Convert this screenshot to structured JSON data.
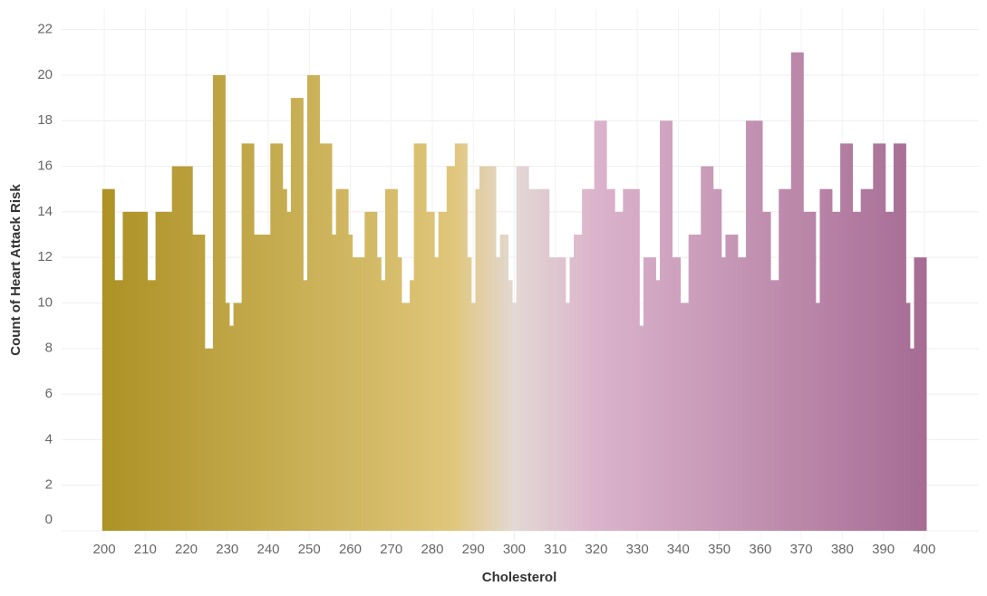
{
  "chart_data": {
    "type": "histogram",
    "x_label": "Cholesterol",
    "y_label": "Count of Heart Attack Risk",
    "bins": [
      199.5,
      200.5,
      201.5,
      202.5,
      203.5,
      204.5,
      205.5,
      206.5,
      207.5,
      208.5,
      209.5,
      210.5,
      211.5,
      212.5,
      213.5,
      214.5,
      215.5,
      216.5,
      217.5,
      218.5,
      219.5,
      220.5,
      221.5,
      222.5,
      223.5,
      224.5,
      225.5,
      226.5,
      227.5,
      228.5,
      229.5,
      230.5,
      231.5,
      232.5,
      233.5,
      234.5,
      235.5,
      236.5,
      237.5,
      238.5,
      239.5,
      240.5,
      241.5,
      242.5,
      243.5,
      244.5,
      245.5,
      246.5,
      247.5,
      248.5,
      249.5,
      250.5,
      251.5,
      252.5,
      253.5,
      254.5,
      255.5,
      256.5,
      257.5,
      258.5,
      259.5,
      260.5,
      261.5,
      262.5,
      263.5,
      264.5,
      265.5,
      266.5,
      267.5,
      268.5,
      269.5,
      270.5,
      271.5,
      272.5,
      273.5,
      274.5,
      275.5,
      276.5,
      277.5,
      278.5,
      279.5,
      280.5,
      281.5,
      282.5,
      283.5,
      284.5,
      285.5,
      286.5,
      287.5,
      288.5,
      289.5,
      290.5,
      291.5,
      292.5,
      293.5,
      294.5,
      295.5,
      296.5,
      297.5,
      298.5,
      299.5,
      300.5,
      301.5,
      302.5,
      303.5,
      304.5,
      305.5,
      306.5,
      307.5,
      308.5,
      309.5,
      310.5,
      311.5,
      312.5,
      313.5,
      314.5,
      315.5,
      316.5,
      317.5,
      318.5,
      319.5,
      320.5,
      321.5,
      322.5,
      323.5,
      324.5,
      325.5,
      326.5,
      327.5,
      328.5,
      329.5,
      330.5,
      331.5,
      332.5,
      333.5,
      334.5,
      335.5,
      336.5,
      337.5,
      338.5,
      339.5,
      340.5,
      341.5,
      342.5,
      343.5,
      344.5,
      345.5,
      346.5,
      347.5,
      348.5,
      349.5,
      350.5,
      351.5,
      352.5,
      353.5,
      354.5,
      355.5,
      356.5,
      357.5,
      358.5,
      359.5,
      360.5,
      361.5,
      362.5,
      363.5,
      364.5,
      365.5,
      366.5,
      367.5,
      368.5,
      369.5,
      370.5,
      371.5,
      372.5,
      373.5,
      374.5,
      375.5,
      376.5,
      377.5,
      378.5,
      379.5,
      380.5,
      381.5,
      382.5,
      383.5,
      384.5,
      385.5,
      386.5,
      387.5,
      388.5,
      389.5,
      390.5,
      391.5,
      392.5,
      393.5,
      394.5,
      395.5,
      396.5,
      397.5,
      398.5,
      399.5,
      400.5
    ],
    "values": [
      15,
      15,
      15,
      11,
      11,
      14,
      14,
      14,
      14,
      14,
      14,
      11,
      11,
      14,
      14,
      14,
      14,
      16,
      16,
      16,
      16,
      16,
      13,
      13,
      13,
      8,
      8,
      20,
      20,
      20,
      10,
      9,
      10,
      10,
      17,
      17,
      17,
      13,
      13,
      13,
      13,
      17,
      17,
      17,
      15,
      14,
      19,
      19,
      19,
      11,
      20,
      20,
      20,
      17,
      17,
      17,
      13,
      15,
      15,
      15,
      13,
      12,
      12,
      12,
      14,
      14,
      14,
      12,
      11,
      15,
      15,
      15,
      12,
      10,
      10,
      11,
      17,
      17,
      17,
      14,
      14,
      12,
      14,
      14,
      16,
      16,
      17,
      17,
      17,
      12,
      10,
      15,
      16,
      16,
      16,
      16,
      12,
      13,
      13,
      11,
      10,
      16,
      16,
      16,
      15,
      15,
      15,
      15,
      15,
      12,
      12,
      12,
      12,
      10,
      12,
      13,
      13,
      15,
      15,
      15,
      18,
      18,
      18,
      15,
      15,
      14,
      14,
      15,
      15,
      15,
      15,
      9,
      12,
      12,
      12,
      11,
      18,
      18,
      18,
      12,
      12,
      10,
      10,
      13,
      13,
      13,
      16,
      16,
      16,
      15,
      15,
      12,
      13,
      13,
      13,
      12,
      12,
      18,
      18,
      18,
      18,
      14,
      14,
      11,
      11,
      15,
      15,
      15,
      21,
      21,
      21,
      14,
      14,
      14,
      10,
      15,
      15,
      15,
      14,
      14,
      17,
      17,
      17,
      14,
      14,
      15,
      15,
      15,
      17,
      17,
      17,
      14,
      14,
      17,
      17,
      17,
      10,
      8,
      12,
      12,
      12
    ],
    "color_stops": [
      {
        "value": 200,
        "color": "#ad9226"
      },
      {
        "value": 285,
        "color": "#dfc67a"
      },
      {
        "value": 300,
        "color": "#e3d8d4"
      },
      {
        "value": 320,
        "color": "#dbb3cc"
      },
      {
        "value": 400,
        "color": "#a66c94"
      }
    ],
    "xlim": [
      189.6,
      413.3
    ],
    "xticks": [
      200,
      210,
      220,
      230,
      240,
      250,
      260,
      270,
      280,
      290,
      300,
      310,
      320,
      330,
      340,
      350,
      360,
      370,
      380,
      390,
      400
    ],
    "ylim": [
      0,
      22.9
    ],
    "yticks": [
      0,
      2,
      4,
      6,
      8,
      10,
      12,
      14,
      16,
      18,
      20,
      22
    ],
    "grid": true
  }
}
